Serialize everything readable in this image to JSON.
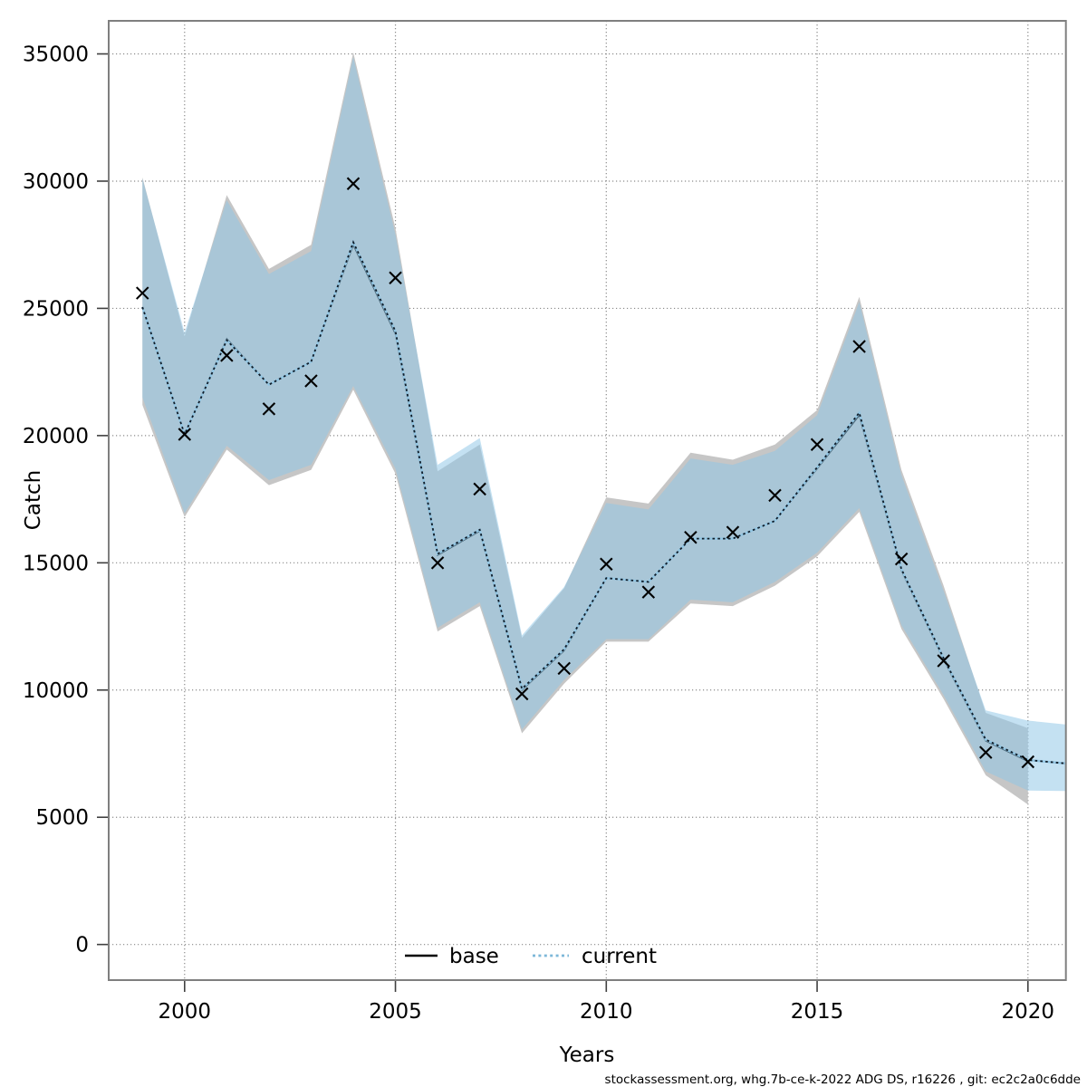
{
  "chart": {
    "xlabel": "Years",
    "ylabel": "Catch",
    "legend": {
      "base_label": "base",
      "current_label": "current"
    },
    "footer": "stockassessment.org, whg.7b-ce-k-2022  ADG  DS, r16226 , git: ec2c2a0c6dde"
  },
  "chart_data": {
    "type": "area",
    "title": "",
    "xlabel": "Years",
    "ylabel": "Catch",
    "grid": true,
    "legend_position": "bottom-center-inside",
    "x_ticks": [
      2000,
      2005,
      2010,
      2015,
      2020
    ],
    "y_ticks": [
      0,
      5000,
      10000,
      15000,
      20000,
      25000,
      30000,
      35000
    ],
    "xlim": [
      1998.2,
      2020.9
    ],
    "ylim": [
      -1400,
      36300
    ],
    "years": [
      1999,
      2000,
      2001,
      2002,
      2003,
      2004,
      2005,
      2006,
      2007,
      2008,
      2009,
      2010,
      2011,
      2012,
      2013,
      2014,
      2015,
      2016,
      2017,
      2018,
      2019,
      2020
    ],
    "series": [
      {
        "name": "observed_catch",
        "type": "scatter",
        "marker": "x",
        "years": [
          1999,
          2000,
          2001,
          2002,
          2003,
          2004,
          2005,
          2006,
          2007,
          2008,
          2009,
          2010,
          2011,
          2012,
          2013,
          2014,
          2015,
          2016,
          2017,
          2018,
          2019,
          2020
        ],
        "values": [
          25600,
          20050,
          23150,
          21050,
          22150,
          29900,
          26200,
          15000,
          17900,
          9850,
          10850,
          14950,
          13850,
          16000,
          16200,
          17650,
          19650,
          23500,
          15150,
          11150,
          7550,
          7180
        ]
      },
      {
        "name": "base",
        "type": "line",
        "style": "solid",
        "years": [
          1999,
          2000,
          2001,
          2002,
          2003,
          2004,
          2005,
          2006,
          2007,
          2008,
          2009,
          2010,
          2011,
          2012,
          2013,
          2014,
          2015,
          2016,
          2017,
          2018,
          2019,
          2020
        ],
        "values": [
          25050,
          20050,
          23800,
          22000,
          22900,
          27500,
          24000,
          15300,
          16250,
          10000,
          11550,
          14400,
          14250,
          15950,
          15950,
          16650,
          18700,
          20800,
          14700,
          11200,
          8000,
          7200
        ]
      },
      {
        "name": "current",
        "type": "line",
        "style": "dotted",
        "years": [
          1999,
          2000,
          2001,
          2002,
          2003,
          2004,
          2005,
          2006,
          2007,
          2008,
          2009,
          2010,
          2011,
          2012,
          2013,
          2014,
          2015,
          2016,
          2017,
          2018,
          2019,
          2020,
          2021
        ],
        "values": [
          25050,
          20050,
          23750,
          22000,
          22900,
          27600,
          24100,
          15350,
          16300,
          10050,
          11600,
          14400,
          14250,
          15950,
          15950,
          16650,
          18750,
          20900,
          14750,
          11250,
          8050,
          7250,
          7100
        ]
      },
      {
        "name": "base_confidence_band",
        "type": "band",
        "years": [
          1999,
          2000,
          2001,
          2002,
          2003,
          2004,
          2005,
          2006,
          2007,
          2008,
          2009,
          2010,
          2011,
          2012,
          2013,
          2014,
          2015,
          2016,
          2017,
          2018,
          2019,
          2020
        ],
        "hi": [
          30150,
          23900,
          29450,
          26550,
          27500,
          35060,
          28150,
          18600,
          19650,
          12050,
          14000,
          17570,
          17330,
          19330,
          19050,
          19650,
          21000,
          25450,
          18650,
          14100,
          9100,
          8500
        ],
        "lo": [
          21200,
          16800,
          19450,
          18050,
          18650,
          21800,
          18500,
          12300,
          13300,
          8300,
          10250,
          11900,
          11900,
          13400,
          13300,
          14100,
          15250,
          17000,
          12400,
          9650,
          6650,
          5500
        ]
      },
      {
        "name": "current_confidence_band",
        "type": "band",
        "years": [
          1999,
          2000,
          2001,
          2002,
          2003,
          2004,
          2005,
          2006,
          2007,
          2008,
          2009,
          2010,
          2011,
          2012,
          2013,
          2014,
          2015,
          2016,
          2017,
          2018,
          2019,
          2020,
          2021
        ],
        "hi": [
          30100,
          24050,
          29250,
          26350,
          27250,
          34880,
          27900,
          18850,
          19900,
          12150,
          14050,
          17350,
          17100,
          19100,
          18850,
          19400,
          20800,
          25250,
          18450,
          13900,
          9200,
          8800,
          8630
        ],
        "lo": [
          21500,
          16950,
          19600,
          18250,
          18850,
          21950,
          18700,
          12450,
          13450,
          8450,
          10400,
          12000,
          12000,
          13550,
          13450,
          14250,
          15400,
          17150,
          12550,
          9800,
          6800,
          6050,
          6030
        ]
      }
    ],
    "colors": {
      "base_band": "#c6c6c6",
      "current_band": "#8ec5e6",
      "current_band_opacity": 0.52,
      "base_line": "#000000",
      "current_line_under": "#93c6e3",
      "current_line_dash": "#101c28",
      "marker": "#000000",
      "grid": "#8c8c8c",
      "border": "#7f7f7f",
      "legend_current_sample": "#7db8d9"
    }
  }
}
